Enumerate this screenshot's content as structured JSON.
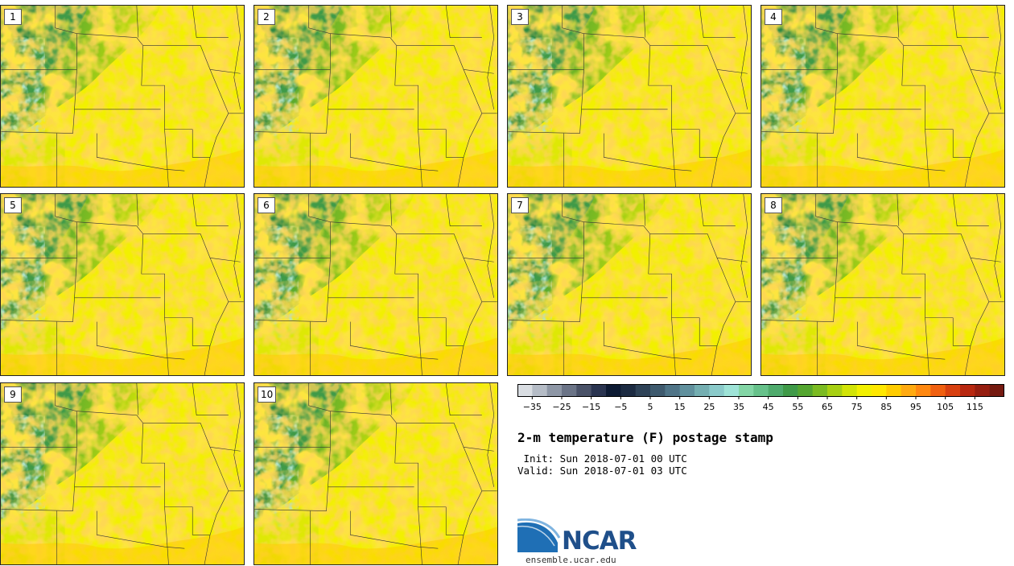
{
  "title": "2-m temperature (F) postage stamp",
  "init_line": " Init: Sun 2018-07-01 00 UTC",
  "valid_line": "Valid: Sun 2018-07-01 03 UTC",
  "logo_text": "NCAR",
  "site": "ensemble.ucar.edu",
  "members": [
    "1",
    "2",
    "3",
    "4",
    "5",
    "6",
    "7",
    "8",
    "9",
    "10"
  ],
  "colorbar": {
    "colors": [
      "#d9dde2",
      "#b5bcc6",
      "#8e97a6",
      "#6b7487",
      "#4a5268",
      "#2a3450",
      "#0d1a33",
      "#1c2b42",
      "#2e4257",
      "#3e5a6e",
      "#4f7487",
      "#60909d",
      "#74aeb1",
      "#8acaca",
      "#9ee3d7",
      "#83d6a6",
      "#66c18a",
      "#4fab6d",
      "#3f9a48",
      "#54a630",
      "#7bbb22",
      "#a7d013",
      "#d2e407",
      "#f2f000",
      "#ffe800",
      "#ffcc00",
      "#ffaa10",
      "#ff8810",
      "#f06010",
      "#d84010",
      "#b82810",
      "#961e10",
      "#751a10"
    ],
    "tick_labels": [
      "−35",
      "−25",
      "−15",
      "−5",
      "5",
      "15",
      "25",
      "35",
      "45",
      "55",
      "65",
      "75",
      "85",
      "95",
      "105",
      "115"
    ],
    "min": -40,
    "max": 125,
    "step": 5
  }
}
